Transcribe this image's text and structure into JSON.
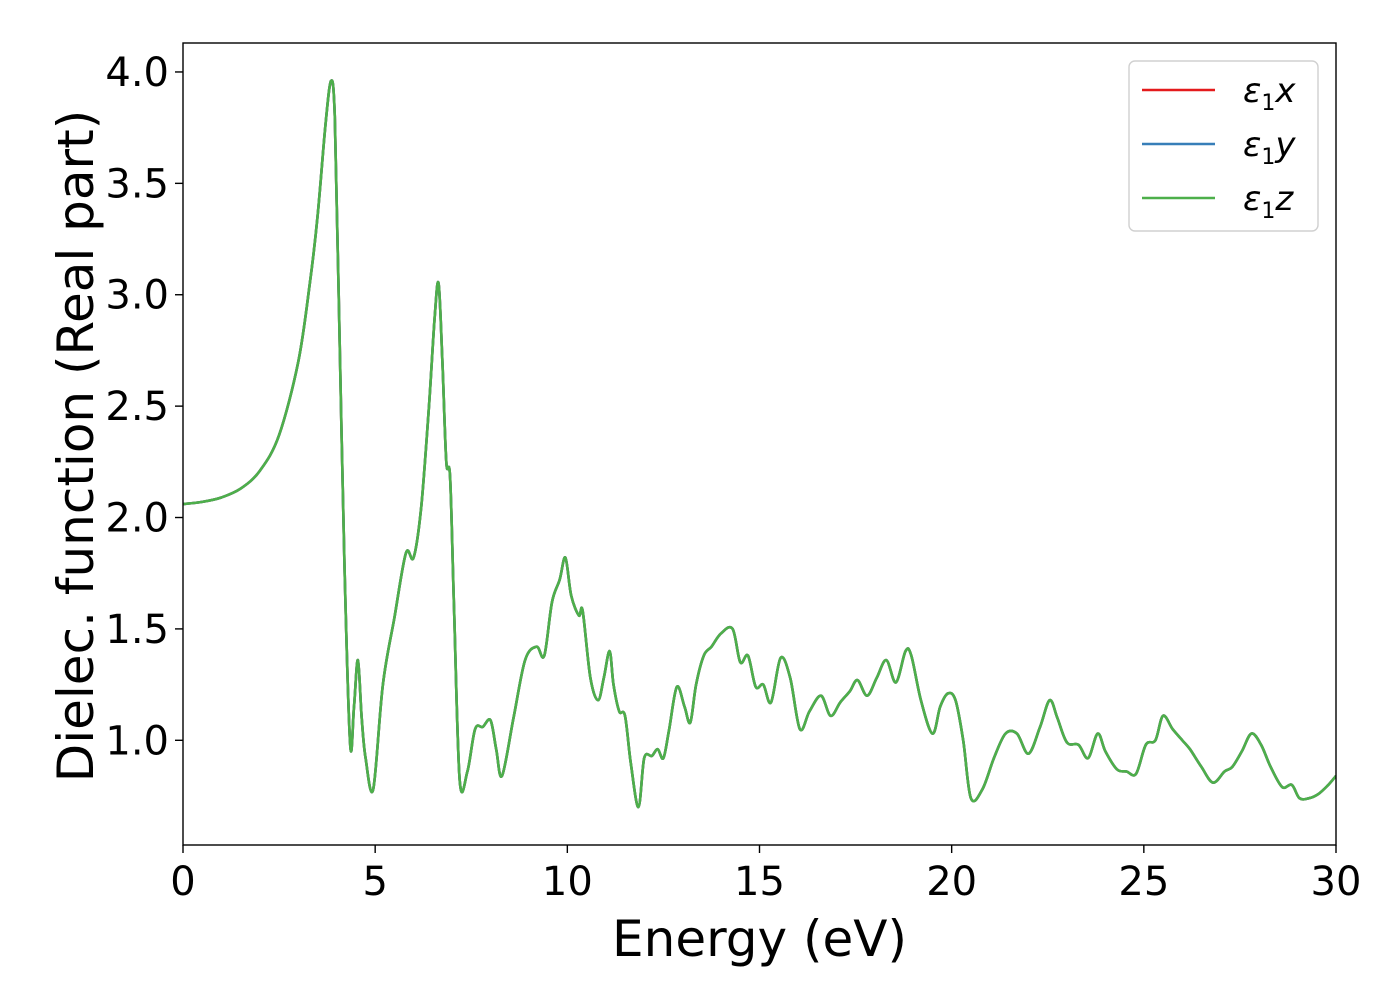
{
  "chart_data": {
    "type": "line",
    "title": "",
    "xlabel": "Energy (eV)",
    "ylabel": "Dielec. function (Real part)",
    "xlim": [
      0,
      30
    ],
    "ylim": [
      0.53,
      4.13
    ],
    "xticks": [
      0,
      5,
      10,
      15,
      20,
      25,
      30
    ],
    "xtick_labels": [
      "0",
      "5",
      "10",
      "15",
      "20",
      "25",
      "30"
    ],
    "yticks": [
      1.0,
      1.5,
      2.0,
      2.5,
      3.0,
      3.5,
      4.0
    ],
    "ytick_labels": [
      "1.0",
      "1.5",
      "2.0",
      "2.5",
      "3.0",
      "3.5",
      "4.0"
    ],
    "grid": false,
    "legend_position": "top-right",
    "series": [
      {
        "name": "ε1x",
        "legend_base": "ε",
        "legend_sub": "1",
        "legend_tail": "x",
        "color": "#e41a1c",
        "same_as": "ε1z"
      },
      {
        "name": "ε1y",
        "legend_base": "ε",
        "legend_sub": "1",
        "legend_tail": "y",
        "color": "#377eb8",
        "same_as": "ε1z"
      },
      {
        "name": "ε1z",
        "legend_base": "ε",
        "legend_sub": "1",
        "legend_tail": "z",
        "color": "#4daf4a"
      }
    ],
    "x": [
      0,
      0.5,
      1.0,
      1.5,
      2.0,
      2.5,
      3.0,
      3.3,
      3.5,
      3.7,
      3.85,
      3.95,
      4.05,
      4.2,
      4.35,
      4.45,
      4.55,
      4.65,
      4.75,
      4.95,
      5.2,
      5.5,
      5.8,
      6.0,
      6.2,
      6.4,
      6.55,
      6.65,
      6.75,
      6.85,
      6.95,
      7.05,
      7.2,
      7.4,
      7.6,
      7.8,
      8.0,
      8.15,
      8.3,
      8.6,
      8.9,
      9.2,
      9.4,
      9.6,
      9.8,
      9.95,
      10.1,
      10.3,
      10.4,
      10.6,
      10.8,
      10.95,
      11.1,
      11.2,
      11.35,
      11.5,
      11.65,
      11.85,
      12.0,
      12.2,
      12.35,
      12.5,
      12.65,
      12.85,
      13.05,
      13.2,
      13.35,
      13.55,
      13.75,
      14.0,
      14.3,
      14.5,
      14.7,
      14.9,
      15.1,
      15.3,
      15.55,
      15.8,
      16.05,
      16.3,
      16.6,
      16.85,
      17.1,
      17.35,
      17.55,
      17.8,
      18.05,
      18.3,
      18.55,
      18.8,
      18.95,
      19.2,
      19.5,
      19.7,
      19.9,
      20.1,
      20.3,
      20.5,
      20.8,
      21.1,
      21.4,
      21.7,
      22.0,
      22.3,
      22.55,
      22.75,
      23.0,
      23.3,
      23.55,
      23.8,
      24.0,
      24.3,
      24.55,
      24.8,
      25.05,
      25.3,
      25.5,
      25.75,
      26.0,
      26.2,
      26.5,
      26.8,
      27.1,
      27.3,
      27.55,
      27.8,
      28.05,
      28.3,
      28.6,
      28.85,
      29.05,
      29.3,
      29.55,
      29.8,
      30.0
    ],
    "values": [
      2.06,
      2.07,
      2.09,
      2.13,
      2.21,
      2.37,
      2.7,
      3.05,
      3.35,
      3.75,
      3.96,
      3.8,
      3.0,
      1.8,
      0.98,
      1.15,
      1.36,
      1.1,
      0.92,
      0.78,
      1.25,
      1.55,
      1.84,
      1.82,
      2.05,
      2.5,
      2.9,
      3.05,
      2.7,
      2.25,
      2.18,
      1.6,
      0.82,
      0.86,
      1.05,
      1.06,
      1.09,
      0.96,
      0.84,
      1.1,
      1.36,
      1.42,
      1.38,
      1.62,
      1.72,
      1.82,
      1.65,
      1.56,
      1.58,
      1.28,
      1.18,
      1.28,
      1.4,
      1.25,
      1.13,
      1.11,
      0.9,
      0.7,
      0.92,
      0.93,
      0.96,
      0.92,
      1.05,
      1.24,
      1.15,
      1.08,
      1.25,
      1.38,
      1.42,
      1.48,
      1.5,
      1.35,
      1.38,
      1.24,
      1.25,
      1.17,
      1.37,
      1.28,
      1.05,
      1.13,
      1.2,
      1.11,
      1.17,
      1.22,
      1.27,
      1.2,
      1.28,
      1.36,
      1.26,
      1.4,
      1.38,
      1.18,
      1.03,
      1.15,
      1.21,
      1.18,
      1.0,
      0.74,
      0.78,
      0.92,
      1.03,
      1.03,
      0.94,
      1.06,
      1.18,
      1.1,
      0.99,
      0.98,
      0.92,
      1.03,
      0.95,
      0.87,
      0.86,
      0.85,
      0.98,
      1.0,
      1.11,
      1.05,
      1.0,
      0.96,
      0.88,
      0.81,
      0.86,
      0.88,
      0.95,
      1.03,
      0.98,
      0.88,
      0.79,
      0.8,
      0.74,
      0.74,
      0.76,
      0.8,
      0.84
    ]
  }
}
